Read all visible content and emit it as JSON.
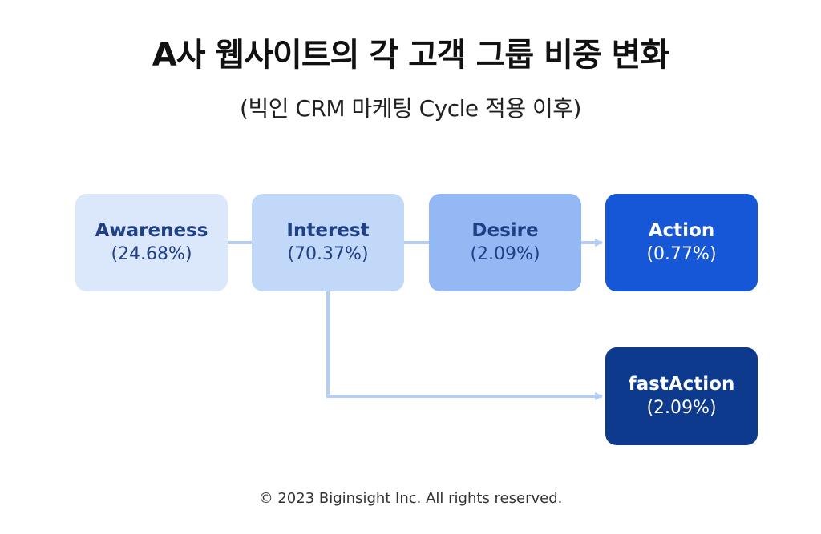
{
  "title": "A사 웹사이트의 각 고객 그룹 비중 변화",
  "subtitle": "(빅인 CRM 마케팅 Cycle 적용 이후)",
  "nodes": {
    "awareness": {
      "label": "Awareness",
      "value": "(24.68%)",
      "bg": "#dbe8fb",
      "fg": "#1f3f86"
    },
    "interest": {
      "label": "Interest",
      "value": "(70.37%)",
      "bg": "#c2d8f9",
      "fg": "#1f3f86"
    },
    "desire": {
      "label": "Desire",
      "value": "(2.09%)",
      "bg": "#93b8f3",
      "fg": "#1f3f86"
    },
    "action": {
      "label": "Action",
      "value": "(0.77%)",
      "bg": "#1557d6",
      "fg": "#ffffff"
    },
    "fastaction": {
      "label": "fastAction",
      "value": "(2.09%)",
      "bg": "#0d3a8c",
      "fg": "#ffffff"
    }
  },
  "connector_color": "#b3cdf6",
  "footer": "© 2023 Biginsight Inc. All rights reserved."
}
